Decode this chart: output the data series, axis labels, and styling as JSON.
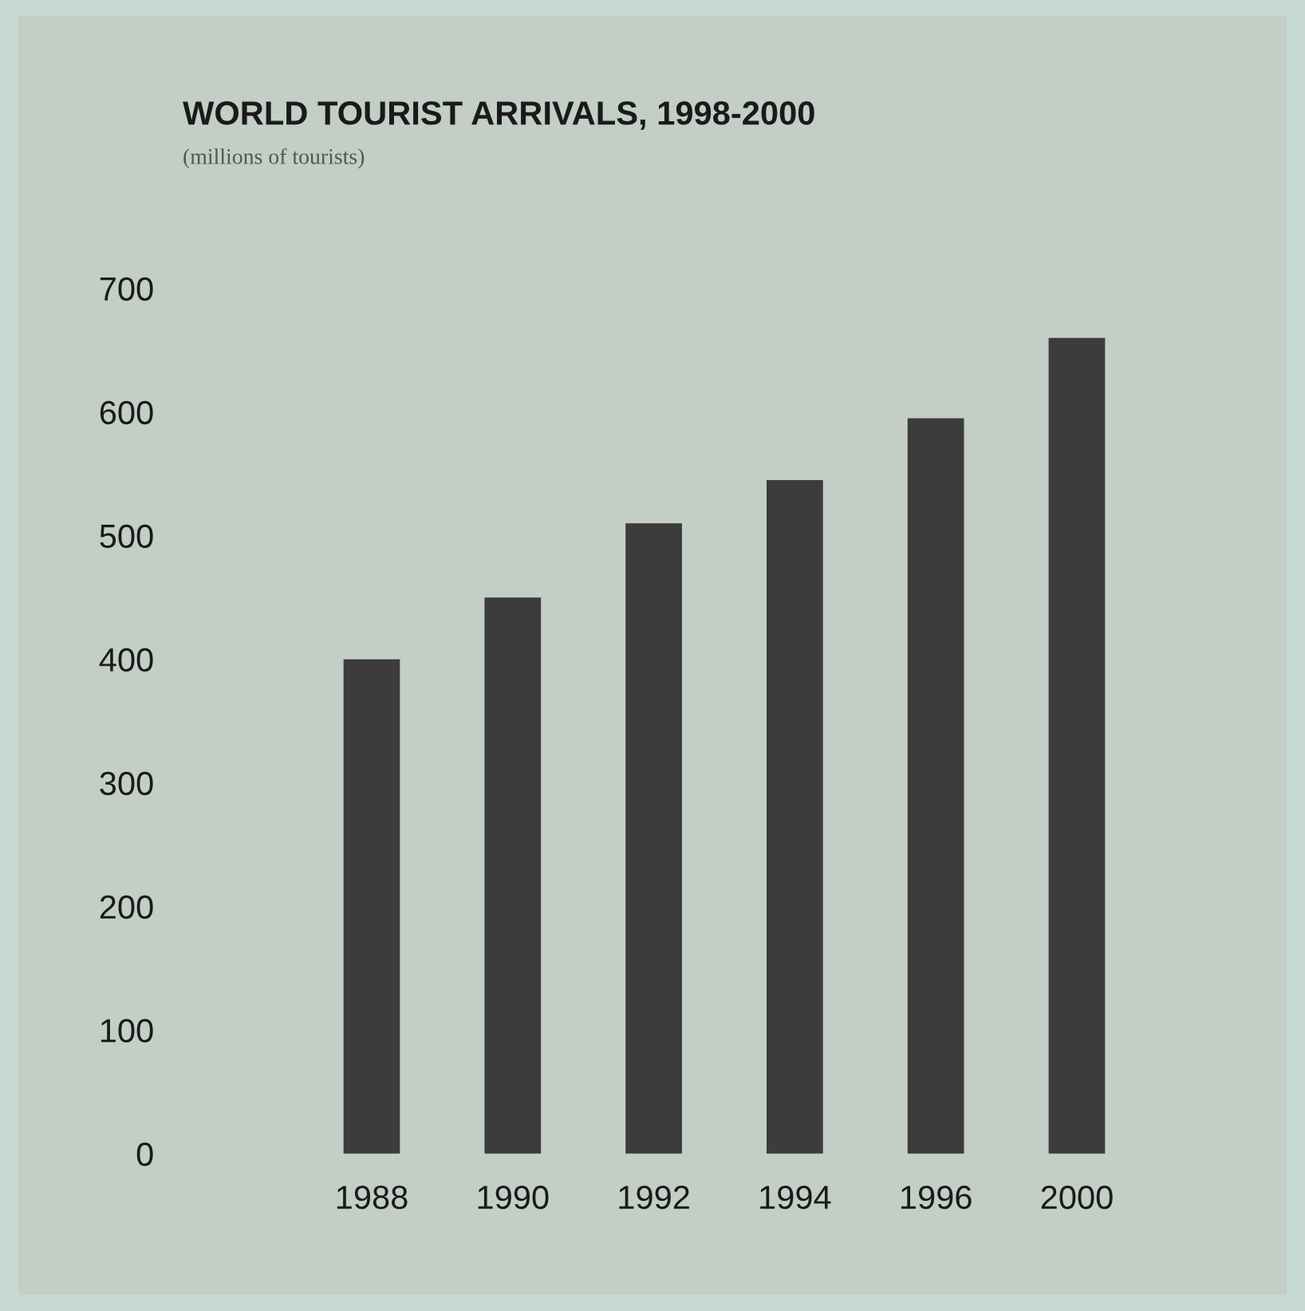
{
  "chart_data": {
    "type": "bar",
    "title": "WORLD TOURIST ARRIVALS, 1998-2000",
    "subtitle": "(millions of tourists)",
    "categories": [
      "1988",
      "1990",
      "1992",
      "1994",
      "1996",
      "2000"
    ],
    "values": [
      400,
      450,
      510,
      545,
      595,
      660
    ],
    "color": "#3c3c3c",
    "ylim": [
      0,
      700
    ],
    "yticks": [
      0,
      100,
      200,
      300,
      400,
      500,
      600,
      700
    ],
    "grid": false,
    "legend": false
  }
}
